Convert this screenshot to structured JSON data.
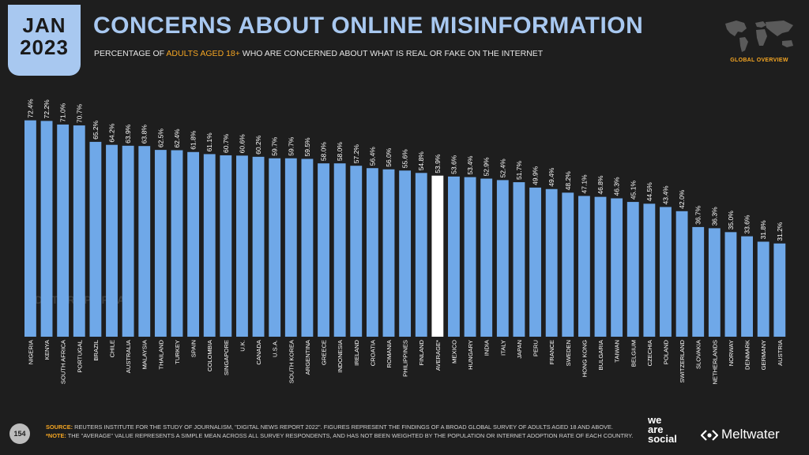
{
  "header": {
    "month": "JAN",
    "year": "2023",
    "title": "CONCERNS ABOUT ONLINE MISINFORMATION",
    "subtitle_prefix": "PERCENTAGE OF ",
    "subtitle_highlight": "ADULTS AGED 18+",
    "subtitle_suffix": " WHO ARE CONCERNED ABOUT WHAT IS REAL OR FAKE ON THE INTERNET",
    "region_label": "GLOBAL OVERVIEW"
  },
  "watermark": "DATAREPORTAL",
  "footer": {
    "page_number": "154",
    "source_key": "SOURCE:",
    "source_text": " REUTERS INSTITUTE FOR THE STUDY OF JOURNALISM, \"DIGITAL NEWS REPORT 2022\". FIGURES REPRESENT THE FINDINGS OF A BROAD GLOBAL SURVEY OF ADULTS AGED 18 AND ABOVE.",
    "note_key": "*NOTE:",
    "note_text": " THE \"AVERAGE\" VALUE REPRESENTS A SIMPLE MEAN ACROSS ALL SURVEY RESPONDENTS, AND HAS NOT BEEN WEIGHTED BY THE POPULATION OR INTERNET ADOPTION RATE OF EACH COUNTRY.",
    "logo_we": "we",
    "logo_are": "are",
    "logo_social": "social",
    "logo_meltwater": "Meltwater"
  },
  "colors": {
    "bar": "#6fa8e8",
    "highlight_bar": "#ffffff",
    "accent": "#f5a623",
    "title": "#a8c8f0"
  },
  "chart_data": {
    "type": "bar",
    "highlight_category": "AVERAGE*",
    "categories": [
      "NIGERIA",
      "KENYA",
      "SOUTH AFRICA",
      "PORTUGAL",
      "BRAZIL",
      "CHILE",
      "AUSTRALIA",
      "MALAYSIA",
      "THAILAND",
      "TURKEY",
      "SPAIN",
      "COLOMBIA",
      "SINGAPORE",
      "U.K.",
      "CANADA",
      "U.S.A.",
      "SOUTH KOREA",
      "ARGENTINA",
      "GREECE",
      "INDONESIA",
      "IRELAND",
      "CROATIA",
      "ROMANIA",
      "PHILIPPINES",
      "FINLAND",
      "AVERAGE*",
      "MEXICO",
      "HUNGARY",
      "INDIA",
      "ITALY",
      "JAPAN",
      "PERU",
      "FRANCE",
      "SWEDEN",
      "HONG KONG",
      "BULGARIA",
      "TAIWAN",
      "BELGIUM",
      "CZECHIA",
      "POLAND",
      "SWITZERLAND",
      "SLOVAKIA",
      "NETHERLANDS",
      "NORWAY",
      "DENMARK",
      "GERMANY",
      "AUSTRIA"
    ],
    "values": [
      72.4,
      72.2,
      71.0,
      70.7,
      65.2,
      64.2,
      63.9,
      63.8,
      62.5,
      62.4,
      61.8,
      61.1,
      60.7,
      60.6,
      60.2,
      59.7,
      59.7,
      59.5,
      58.0,
      58.0,
      57.2,
      56.4,
      56.0,
      55.6,
      54.8,
      53.9,
      53.6,
      53.4,
      52.9,
      52.4,
      51.7,
      49.9,
      49.4,
      48.2,
      47.1,
      46.8,
      46.3,
      45.1,
      44.5,
      43.4,
      42.0,
      36.7,
      36.3,
      35.0,
      33.6,
      31.8,
      31.2
    ],
    "value_labels": [
      "72.4%",
      "72.2%",
      "71.0%",
      "70.7%",
      "65.2%",
      "64.2%",
      "63.9%",
      "63.8%",
      "62.5%",
      "62.4%",
      "61.8%",
      "61.1%",
      "60.7%",
      "60.6%",
      "60.2%",
      "59.7%",
      "59.7%",
      "59.5%",
      "58.0%",
      "58.0%",
      "57.2%",
      "56.4%",
      "56.0%",
      "55.6%",
      "54.8%",
      "53.9%",
      "53.6%",
      "53.4%",
      "52.9%",
      "52.4%",
      "51.7%",
      "49.9%",
      "49.4%",
      "48.2%",
      "47.1%",
      "46.8%",
      "46.3%",
      "45.1%",
      "44.5%",
      "43.4%",
      "42.0%",
      "36.7%",
      "36.3%",
      "35.0%",
      "33.6%",
      "31.8%",
      "31.2%"
    ],
    "ylim": [
      0,
      100
    ]
  }
}
